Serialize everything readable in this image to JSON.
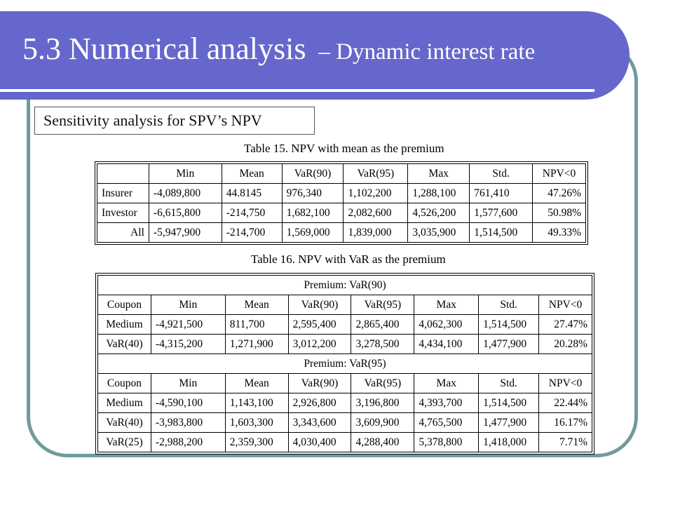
{
  "slide": {
    "title_main": "5.3 Numerical analysis",
    "title_sub": "– Dynamic interest rate",
    "subtitle": "Sensitivity analysis for SPV’s NPV"
  },
  "table15": {
    "caption": "Table 15. NPV with mean as the premium",
    "columns": [
      "",
      "Min",
      "Mean",
      "VaR(90)",
      "VaR(95)",
      "Max",
      "Std.",
      "NPV<0"
    ],
    "rows": [
      [
        "Insurer",
        "-4,089,800",
        "44.8145",
        "976,340",
        "1,102,200",
        "1,288,100",
        "761,410",
        "47.26%"
      ],
      [
        "Investor",
        "-6,615,800",
        "-214,750",
        "1,682,100",
        "2,082,600",
        "4,526,200",
        "1,577,600",
        "50.98%"
      ],
      [
        "All",
        "-5,947,900",
        "-214,700",
        "1,569,000",
        "1,839,000",
        "3,035,900",
        "1,514,500",
        "49.33%"
      ]
    ]
  },
  "table16": {
    "caption": "Table 16. NPV with VaR as the premium",
    "columns": [
      "Coupon",
      "Min",
      "Mean",
      "VaR(90)",
      "VaR(95)",
      "Max",
      "Std.",
      "NPV<0"
    ],
    "section1": {
      "header": "Premium: VaR(90)",
      "rows": [
        [
          "Medium",
          "-4,921,500",
          "811,700",
          "2,595,400",
          "2,865,400",
          "4,062,300",
          "1,514,500",
          "27.47%"
        ],
        [
          "VaR(40)",
          "-4,315,200",
          "1,271,900",
          "3,012,200",
          "3,278,500",
          "4,434,100",
          "1,477,900",
          "20.28%"
        ]
      ]
    },
    "section2": {
      "header": "Premium: VaR(95)",
      "rows": [
        [
          "Medium",
          "-4,590,100",
          "1,143,100",
          "2,926,800",
          "3,196,800",
          "4,393,700",
          "1,514,500",
          "22.44%"
        ],
        [
          "VaR(40)",
          "-3,983,800",
          "1,603,300",
          "3,343,600",
          "3,609,900",
          "4,765,500",
          "1,477,900",
          "16.17%"
        ],
        [
          "VaR(25)",
          "-2,988,200",
          "2,359,300",
          "4,030,400",
          "4,288,400",
          "5,378,800",
          "1,418,000",
          "7.71%"
        ]
      ]
    }
  },
  "colors": {
    "title_bar": "#6667cc",
    "frame": "#6f9c9a",
    "title_text": "#ffffff"
  }
}
